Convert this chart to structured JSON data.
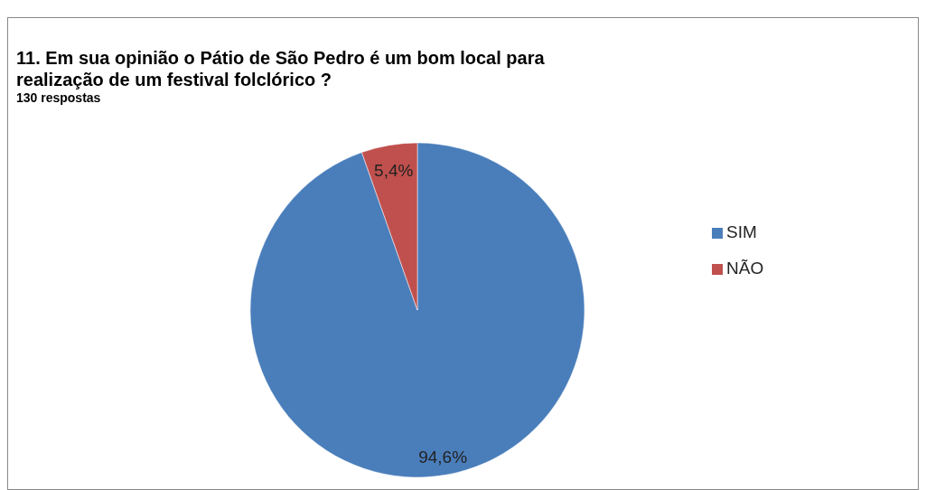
{
  "chart_data": {
    "type": "pie",
    "title": "11. Em sua opinião o Pátio de São Pedro é um bom local para realização de um festival folclórico ?",
    "subtitle": "130 respostas",
    "categories": [
      "SIM",
      "NÃO"
    ],
    "values": [
      94.6,
      5.4
    ],
    "colors": [
      "#4a7ebb",
      "#c0504d"
    ],
    "value_labels": [
      "94,6%",
      "5,4%"
    ],
    "legend": "right"
  }
}
